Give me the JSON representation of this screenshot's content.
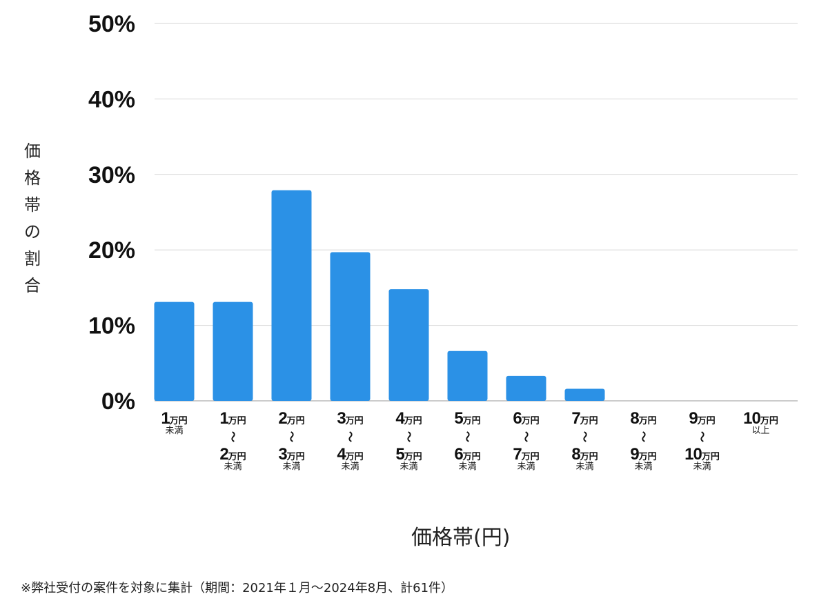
{
  "chart_data": {
    "type": "bar",
    "xlabel": "価格帯(円)",
    "ylabel": "価格帯の割合",
    "ylim": [
      0,
      50
    ],
    "yticks": [
      "0%",
      "10%",
      "20%",
      "30%",
      "40%",
      "50%"
    ],
    "grid": true,
    "bar_color": "#2B91E6",
    "categories": [
      {
        "top_num": "1",
        "top_unit": "万円",
        "wave": "",
        "bottom_num": "",
        "bottom_unit": "",
        "suffix": "未満"
      },
      {
        "top_num": "1",
        "top_unit": "万円",
        "wave": "〜",
        "bottom_num": "2",
        "bottom_unit": "万円",
        "suffix": "未満"
      },
      {
        "top_num": "2",
        "top_unit": "万円",
        "wave": "〜",
        "bottom_num": "3",
        "bottom_unit": "万円",
        "suffix": "未満"
      },
      {
        "top_num": "3",
        "top_unit": "万円",
        "wave": "〜",
        "bottom_num": "4",
        "bottom_unit": "万円",
        "suffix": "未満"
      },
      {
        "top_num": "4",
        "top_unit": "万円",
        "wave": "〜",
        "bottom_num": "5",
        "bottom_unit": "万円",
        "suffix": "未満"
      },
      {
        "top_num": "5",
        "top_unit": "万円",
        "wave": "〜",
        "bottom_num": "6",
        "bottom_unit": "万円",
        "suffix": "未満"
      },
      {
        "top_num": "6",
        "top_unit": "万円",
        "wave": "〜",
        "bottom_num": "7",
        "bottom_unit": "万円",
        "suffix": "未満"
      },
      {
        "top_num": "7",
        "top_unit": "万円",
        "wave": "〜",
        "bottom_num": "8",
        "bottom_unit": "万円",
        "suffix": "未満"
      },
      {
        "top_num": "8",
        "top_unit": "万円",
        "wave": "〜",
        "bottom_num": "9",
        "bottom_unit": "万円",
        "suffix": "未満"
      },
      {
        "top_num": "9",
        "top_unit": "万円",
        "wave": "〜",
        "bottom_num": "10",
        "bottom_unit": "万円",
        "suffix": "未満"
      },
      {
        "top_num": "10",
        "top_unit": "万円",
        "wave": "",
        "bottom_num": "",
        "bottom_unit": "",
        "suffix": "以上"
      }
    ],
    "values": [
      13.1,
      13.1,
      27.9,
      19.7,
      14.8,
      6.6,
      3.3,
      1.6,
      0,
      0,
      0
    ]
  },
  "footnote": "※弊社受付の案件を対象に集計（期間：2021年１月〜2024年8月、計61件）"
}
